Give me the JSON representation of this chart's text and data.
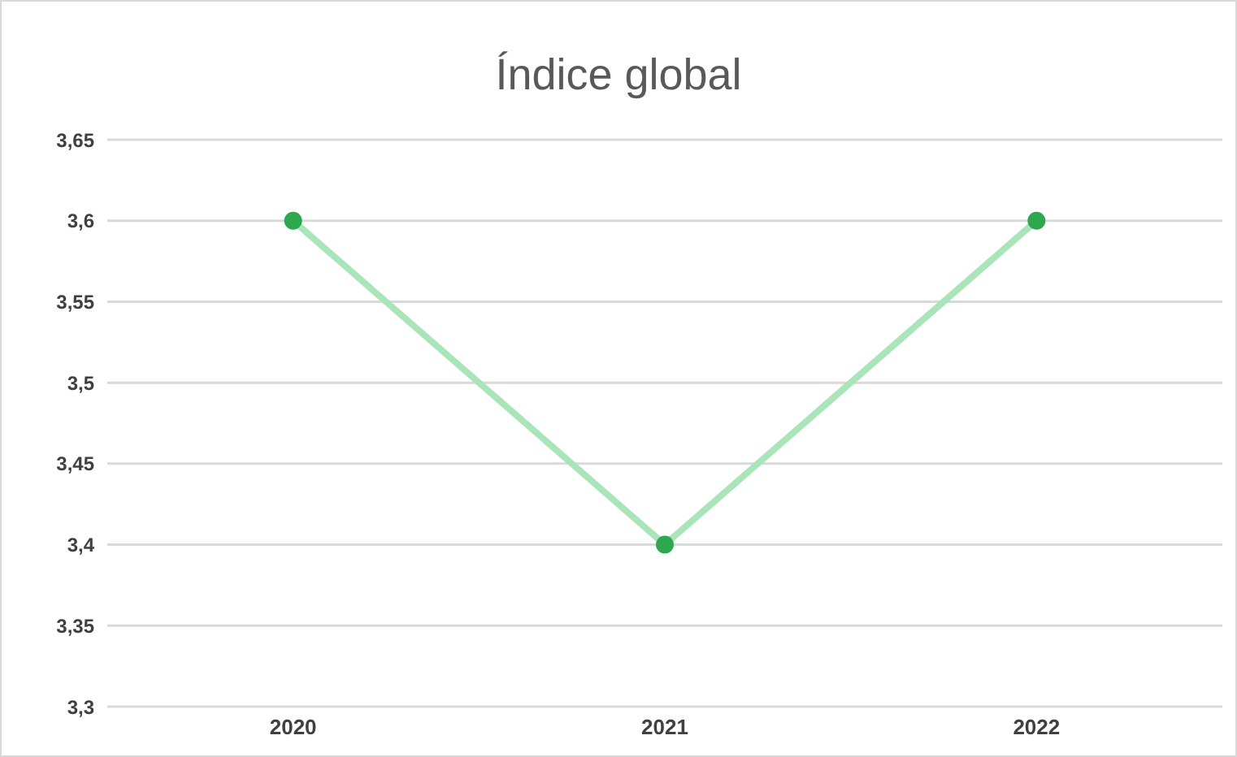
{
  "chart_data": {
    "type": "line",
    "title": "Índice global",
    "categories": [
      "2020",
      "2021",
      "2022"
    ],
    "series": [
      {
        "color": "#a9e5b9",
        "colors": [
          "#2ea84f",
          "#2ea84f",
          "#2ea84f"
        ],
        "values": [
          3.6,
          3.4,
          3.6
        ]
      }
    ],
    "ylim": [
      3.3,
      3.65
    ],
    "yticks": [
      {
        "value": 3.3,
        "label": "3,3"
      },
      {
        "value": 3.35,
        "label": "3,35"
      },
      {
        "value": 3.4,
        "label": "3,4"
      },
      {
        "value": 3.45,
        "label": "3,45"
      },
      {
        "value": 3.5,
        "label": "3,5"
      },
      {
        "value": 3.55,
        "label": "3,55"
      },
      {
        "value": 3.6,
        "label": "3,6"
      },
      {
        "value": 3.65,
        "label": "3,65"
      }
    ],
    "grid": "y",
    "legend": false,
    "marker": "circle",
    "line_style": "solid"
  }
}
